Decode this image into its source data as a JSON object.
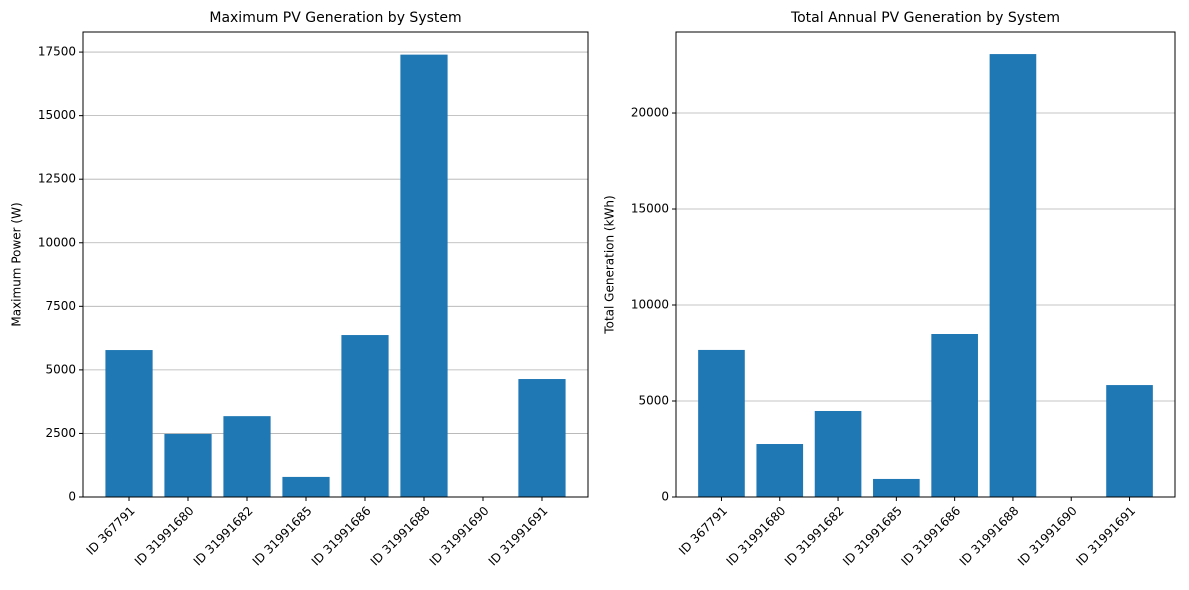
{
  "chart_data": [
    {
      "type": "bar",
      "title": "Maximum PV Generation by System",
      "y_label": "Maximum Power (W)",
      "categories": [
        "ID 367791",
        "ID 31991680",
        "ID 31991682",
        "ID 31991685",
        "ID 31991686",
        "ID 31991688",
        "ID 31991690",
        "ID 31991691"
      ],
      "values": [
        5780,
        2480,
        3180,
        790,
        6370,
        17400,
        0,
        4640
      ],
      "color": "#1f77b4",
      "ylim": [
        0,
        18290
      ],
      "yticks": [
        0,
        2500,
        5000,
        7500,
        10000,
        12500,
        15000,
        17500
      ],
      "grid": true
    },
    {
      "type": "bar",
      "title": "Total Annual PV Generation by System",
      "y_label": "Total Generation (kWh)",
      "categories": [
        "ID 367791",
        "ID 31991680",
        "ID 31991682",
        "ID 31991685",
        "ID 31991686",
        "ID 31991688",
        "ID 31991690",
        "ID 31991691"
      ],
      "values": [
        7660,
        2760,
        4480,
        940,
        8490,
        23070,
        0,
        5830
      ],
      "color": "#1f77b4",
      "ylim": [
        0,
        24220
      ],
      "yticks": [
        0,
        5000,
        10000,
        15000,
        20000
      ],
      "grid": true
    }
  ]
}
